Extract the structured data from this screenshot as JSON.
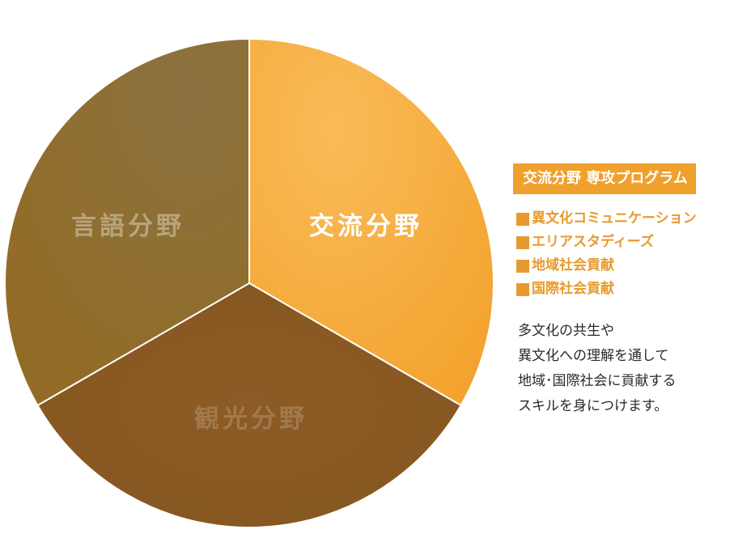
{
  "diagram": {
    "segments": [
      {
        "id": "koryu",
        "label": "交流分野",
        "color": "#f6aa3a",
        "label_color": "#ffffff"
      },
      {
        "id": "kanko",
        "label": "観光分野",
        "color": "#8a5a24",
        "label_color": "#a07a4c"
      },
      {
        "id": "gengo",
        "label": "言語分野",
        "color": "#94702c",
        "label_color": "#b8a47c"
      }
    ]
  },
  "panel": {
    "title": "交流分野 専攻プログラム",
    "programs": [
      "異文化コミュニケーション",
      "エリアスタディーズ",
      "地域社会貢献",
      "国際社会貢献"
    ],
    "description_lines": [
      "多文化の共生や",
      "異文化への理解を通して",
      "地域･国際社会に貢献する",
      "スキルを身につけます。"
    ]
  }
}
